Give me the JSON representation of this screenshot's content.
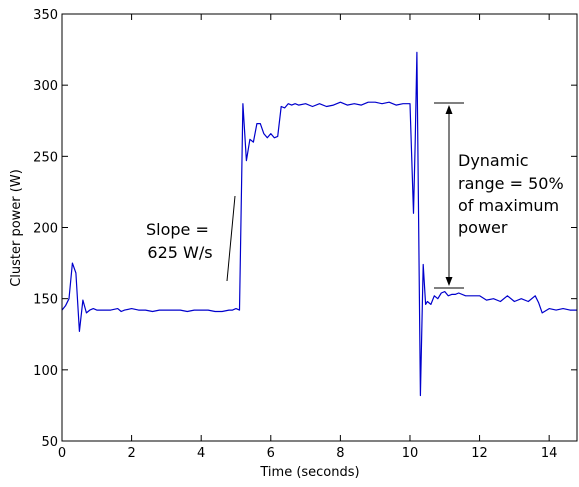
{
  "chart_data": {
    "type": "line",
    "title": "",
    "xlabel": "Time (seconds)",
    "ylabel": "Cluster power (W)",
    "xlim": [
      0,
      14.8
    ],
    "ylim": [
      50,
      350
    ],
    "xticks": [
      0,
      2,
      4,
      6,
      8,
      10,
      12,
      14
    ],
    "yticks": [
      50,
      100,
      150,
      200,
      250,
      300,
      350
    ],
    "grid": false,
    "legend": "none",
    "series": [
      {
        "color": "#0000cc",
        "x": [
          0,
          0.1,
          0.2,
          0.3,
          0.4,
          0.5,
          0.6,
          0.7,
          0.8,
          0.9,
          1.0,
          1.2,
          1.4,
          1.6,
          1.7,
          1.8,
          2.0,
          2.2,
          2.4,
          2.6,
          2.8,
          3.0,
          3.2,
          3.4,
          3.6,
          3.8,
          4.0,
          4.2,
          4.4,
          4.6,
          4.8,
          4.9,
          5.0,
          5.1,
          5.2,
          5.3,
          5.4,
          5.5,
          5.6,
          5.7,
          5.8,
          5.9,
          6.0,
          6.1,
          6.2,
          6.3,
          6.4,
          6.5,
          6.6,
          6.7,
          6.8,
          7.0,
          7.2,
          7.4,
          7.6,
          7.8,
          8.0,
          8.2,
          8.4,
          8.6,
          8.8,
          9.0,
          9.2,
          9.4,
          9.6,
          9.8,
          10.0,
          10.1,
          10.15,
          10.2,
          10.3,
          10.38,
          10.45,
          10.5,
          10.6,
          10.7,
          10.8,
          10.9,
          11.0,
          11.1,
          11.2,
          11.3,
          11.4,
          11.6,
          11.8,
          12.0,
          12.2,
          12.4,
          12.6,
          12.8,
          13.0,
          13.2,
          13.4,
          13.6,
          13.7,
          13.8,
          14.0,
          14.2,
          14.4,
          14.6,
          14.8
        ],
        "y": [
          142,
          145,
          150,
          175,
          168,
          127,
          149,
          140,
          142,
          143,
          142,
          142,
          142,
          143,
          141,
          142,
          143,
          142,
          142,
          141,
          142,
          142,
          142,
          142,
          141,
          142,
          142,
          142,
          141,
          141,
          142,
          142,
          143,
          142,
          287,
          247,
          262,
          260,
          273,
          273,
          266,
          263,
          266,
          263,
          264,
          285,
          284,
          287,
          286,
          287,
          286,
          287,
          285,
          287,
          285,
          286,
          288,
          286,
          287,
          286,
          288,
          288,
          287,
          288,
          286,
          287,
          287,
          210,
          260,
          323,
          82,
          174,
          146,
          148,
          146,
          152,
          150,
          154,
          155,
          152,
          153,
          153,
          154,
          152,
          152,
          152,
          149,
          150,
          148,
          152,
          148,
          150,
          148,
          152,
          147,
          140,
          143,
          142,
          143,
          142,
          142
        ]
      }
    ],
    "annotations": [
      {
        "text_lines": [
          "Slope =",
          "625 W/s"
        ]
      },
      {
        "text_lines": [
          "Dynamic",
          "range = 50%",
          "of maximum",
          "power"
        ]
      }
    ]
  }
}
